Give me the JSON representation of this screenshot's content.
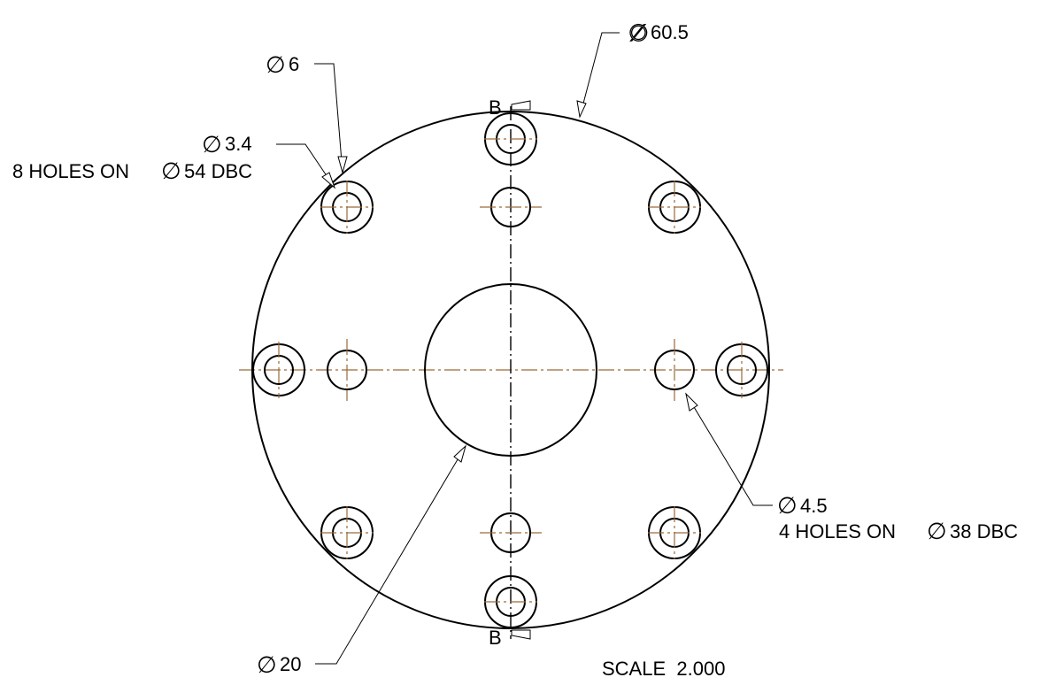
{
  "drawing": {
    "section_mark": "B",
    "scale_label": "SCALE  2.000",
    "callouts": {
      "outer": {
        "symbol": "∅",
        "value": "60.5"
      },
      "cbore": {
        "symbol": "∅",
        "value": "6"
      },
      "thru": {
        "symbol": "∅",
        "value": "3.4"
      },
      "pattern8": {
        "text": "8 HOLES ON",
        "symbol": "∅",
        "value": "54 DBC"
      },
      "inner_hole": {
        "symbol": "∅",
        "value": "4.5"
      },
      "pattern4": {
        "text": "4 HOLES ON",
        "symbol": "∅",
        "value": "38 DBC"
      },
      "bore": {
        "symbol": "∅",
        "value": "20"
      }
    },
    "colors": {
      "line": "#000000",
      "centerline": "#9a6a3a",
      "background": "#ffffff"
    }
  }
}
